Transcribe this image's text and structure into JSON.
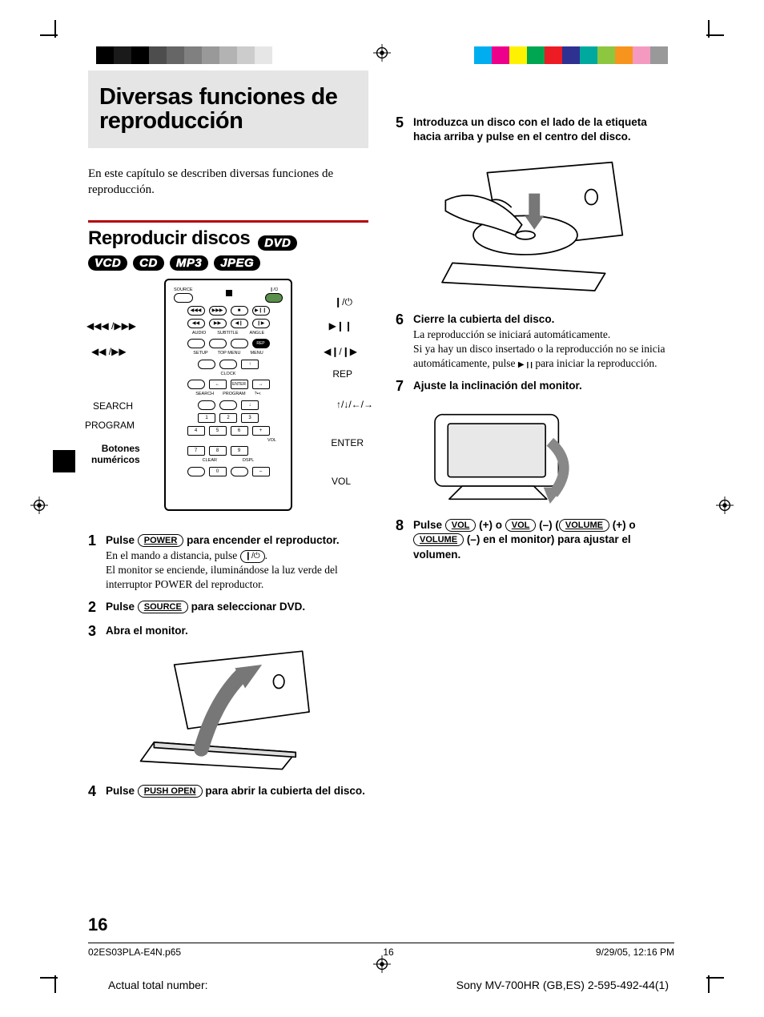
{
  "page": {
    "chapter_title": "Diversas funciones de reproducción",
    "intro_text": "En este capítulo se describen diversas funciones de reproducción.",
    "section_title": "Reproducir discos",
    "section_rule_color": "#b4020c",
    "format_badges": [
      "DVD",
      "VCD",
      "CD",
      "MP3",
      "JPEG"
    ],
    "page_number": "16"
  },
  "remote": {
    "callouts_left": {
      "skip": "◀◀◀ /▶▶▶",
      "scan": "◀◀ /▶▶",
      "search": "SEARCH",
      "program": "PROGRAM",
      "numeric_label": "Botones numéricos"
    },
    "callouts_right": {
      "power": "❙/⏻",
      "play_pause": "▶❙❙",
      "stepfr": "◀❙/❙▶",
      "rep": "REP",
      "nav": "↑/↓/←/→",
      "enter": "ENTER",
      "vol": "VOL"
    },
    "top_labels": [
      "SOURCE"
    ],
    "small_labels": [
      "AUDIO",
      "SUBTITLE",
      "ANGLE",
      "SETUP",
      "TOP MENU",
      "MENU",
      "CLOCK",
      "SEARCH",
      "PROGRAM",
      "ENTER",
      "CLEAR",
      "DSPL",
      "VOL",
      "REP"
    ]
  },
  "steps_left": [
    {
      "n": "1",
      "head_pre": "Pulse ",
      "head_btn": "POWER",
      "head_post": " para encender el reproductor.",
      "body_pre": "En el mando a distancia, pulse ",
      "body_icon": "❙/⏻",
      "body_post": ".\nEl monitor se enciende, iluminándose la luz verde del interruptor POWER del reproductor."
    },
    {
      "n": "2",
      "head_pre": "Pulse ",
      "head_btn": "SOURCE",
      "head_post": " para seleccionar DVD.",
      "body": ""
    },
    {
      "n": "3",
      "head": "Abra el monitor.",
      "body": ""
    },
    {
      "n": "4",
      "head_pre": "Pulse ",
      "head_btn": "PUSH OPEN",
      "head_post": " para abrir la cubierta del disco.",
      "body": ""
    }
  ],
  "steps_right": [
    {
      "n": "5",
      "head": "Introduzca un disco con el lado de la etiqueta hacia arriba y pulse en el centro del disco."
    },
    {
      "n": "6",
      "head": "Cierre la cubierta del disco.",
      "body_a": "La reproducción se iniciará automáticamente.",
      "body_b_pre": "Si ya hay un disco insertado o la reproducción no se inicia automáticamente, pulse ",
      "body_b_post": " para iniciar la reproducción."
    },
    {
      "n": "7",
      "head": "Ajuste la inclinación del monitor."
    },
    {
      "n": "8",
      "head_pre": "Pulse ",
      "head_b1": "VOL",
      "head_m1": " (+) o ",
      "head_b2": "VOL",
      "head_m2": " (–) (",
      "head_b3": "VOLUME",
      "head_m3": " (+) o ",
      "head_b4": "VOLUME",
      "head_post": " (–) en el monitor) para ajustar el volumen."
    }
  ],
  "footer": {
    "file": "02ES03PLA-E4N.p65",
    "pg": "16",
    "datetime": "9/29/05, 12:16 PM",
    "actual_label": "Actual total number:",
    "doc_id": "Sony MV-700HR (GB,ES) 2-595-492-44(1)"
  },
  "swatches": {
    "grey": [
      "#000000",
      "#1a1a1a",
      "#000000",
      "#4d4d4d",
      "#666666",
      "#808080",
      "#999999",
      "#b3b3b3",
      "#cccccc",
      "#e6e6e6"
    ],
    "color": [
      "#00aeef",
      "#ec008c",
      "#fff200",
      "#00a651",
      "#ed1c24",
      "#2e3192",
      "#00a99d",
      "#8dc63f",
      "#f7941d",
      "#f49ac1",
      "#999999"
    ]
  }
}
